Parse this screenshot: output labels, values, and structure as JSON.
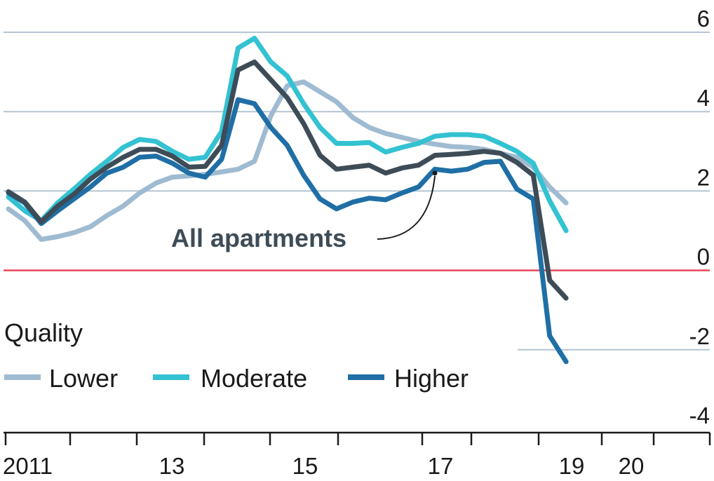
{
  "chart_data": {
    "type": "line",
    "title": "",
    "xlabel": "",
    "ylabel": "",
    "ylim": [
      -4,
      6
    ],
    "yticks": [
      "6",
      "4",
      "2",
      "0",
      "-2",
      "-4"
    ],
    "xticks": [
      "2011",
      "13",
      "15",
      "17",
      "19",
      "20"
    ],
    "x_start": 2011.0,
    "x_step": 0.25,
    "zero_line_color": "#e8485a",
    "grid_color": "#b4c4d4",
    "legend": {
      "title": "Quality",
      "placement": "bottom-left"
    },
    "annotation": {
      "text": "All apartments",
      "series": "All apartments",
      "point": [
        2017.5,
        2.45
      ],
      "color": "#3d4c57"
    },
    "series": [
      {
        "name": "Lower",
        "color": "#9fbbd1",
        "in_legend": true,
        "values": [
          1.55,
          1.25,
          0.78,
          0.85,
          0.95,
          1.1,
          1.38,
          1.62,
          1.95,
          2.2,
          2.35,
          2.38,
          2.42,
          2.48,
          2.55,
          2.75,
          3.9,
          4.65,
          4.75,
          4.5,
          4.25,
          3.85,
          3.6,
          3.45,
          3.35,
          3.25,
          3.18,
          3.12,
          3.1,
          3.05,
          2.95,
          2.85,
          2.6,
          2.1,
          1.7
        ]
      },
      {
        "name": "Moderate",
        "color": "#33c2d2",
        "in_legend": true,
        "values": [
          1.85,
          1.5,
          1.25,
          1.7,
          2.05,
          2.42,
          2.75,
          3.1,
          3.3,
          3.25,
          3.0,
          2.8,
          2.85,
          3.5,
          5.6,
          5.85,
          5.25,
          4.9,
          4.2,
          3.6,
          3.2,
          3.2,
          3.22,
          2.98,
          3.1,
          3.2,
          3.38,
          3.42,
          3.42,
          3.38,
          3.2,
          3.0,
          2.7,
          1.75,
          1.0
        ]
      },
      {
        "name": "Higher",
        "color": "#1f6fa6",
        "in_legend": true,
        "values": [
          1.95,
          1.7,
          1.18,
          1.5,
          1.8,
          2.1,
          2.45,
          2.6,
          2.85,
          2.88,
          2.7,
          2.45,
          2.35,
          2.8,
          4.3,
          4.2,
          3.6,
          3.15,
          2.4,
          1.8,
          1.55,
          1.72,
          1.82,
          1.78,
          1.95,
          2.1,
          2.55,
          2.5,
          2.55,
          2.72,
          2.75,
          2.05,
          1.8,
          -1.65,
          -2.3
        ]
      },
      {
        "name": "All apartments",
        "color": "#3d4c57",
        "in_legend": false,
        "values": [
          1.98,
          1.72,
          1.22,
          1.62,
          1.92,
          2.3,
          2.6,
          2.85,
          3.05,
          3.05,
          2.88,
          2.6,
          2.62,
          3.15,
          5.05,
          5.25,
          4.8,
          4.35,
          3.7,
          2.9,
          2.55,
          2.6,
          2.65,
          2.45,
          2.58,
          2.65,
          2.9,
          2.92,
          2.95,
          3.0,
          2.95,
          2.72,
          2.4,
          -0.25,
          -0.7
        ]
      }
    ]
  }
}
